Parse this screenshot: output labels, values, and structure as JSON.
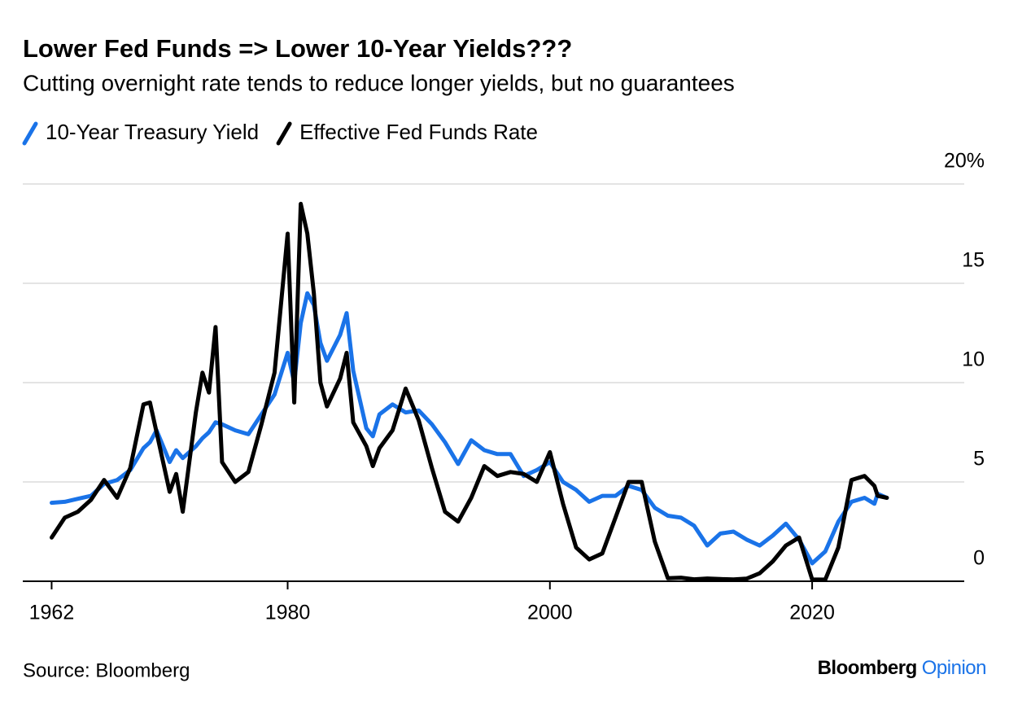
{
  "chart_data": {
    "type": "line",
    "title": "Lower Fed Funds => Lower 10-Year Yields???",
    "subtitle": "Cutting overnight rate tends to reduce longer yields, but no guarantees",
    "source": "Source: Bloomberg",
    "brand": [
      "Bloomberg",
      "Opinion"
    ],
    "x": [
      1962,
      1963,
      1964,
      1965,
      1966,
      1967,
      1968,
      1969,
      1969.5,
      1970,
      1971,
      1971.5,
      1972,
      1973,
      1973.5,
      1974,
      1974.5,
      1975,
      1976,
      1977,
      1978,
      1979,
      1980,
      1980.5,
      1981,
      1981.5,
      1982,
      1982.5,
      1983,
      1984,
      1984.5,
      1985,
      1986,
      1986.5,
      1987,
      1988,
      1989,
      1990,
      1991,
      1992,
      1993,
      1994,
      1995,
      1996,
      1997,
      1998,
      1999,
      2000,
      2001,
      2002,
      2003,
      2004,
      2005,
      2006,
      2007,
      2008,
      2009,
      2010,
      2011,
      2012,
      2013,
      2014,
      2015,
      2016,
      2017,
      2018,
      2019,
      2020,
      2021,
      2022,
      2023,
      2024,
      2024.75,
      2025,
      2025.7
    ],
    "series": [
      {
        "name": "10-Year Treasury Yield",
        "color": "#1a73e8",
        "values": [
          3.95,
          4.0,
          4.15,
          4.3,
          4.9,
          5.1,
          5.6,
          6.7,
          7.0,
          7.6,
          6.0,
          6.6,
          6.2,
          6.8,
          7.2,
          7.5,
          8.0,
          7.9,
          7.6,
          7.4,
          8.4,
          9.4,
          11.5,
          10.0,
          13.0,
          14.5,
          13.9,
          12.0,
          11.1,
          12.4,
          13.5,
          10.6,
          7.7,
          7.3,
          8.4,
          8.9,
          8.5,
          8.6,
          7.9,
          7.0,
          5.9,
          7.1,
          6.6,
          6.4,
          6.4,
          5.3,
          5.6,
          6.0,
          5.0,
          4.6,
          4.0,
          4.3,
          4.3,
          4.8,
          4.6,
          3.7,
          3.3,
          3.2,
          2.8,
          1.8,
          2.4,
          2.5,
          2.1,
          1.8,
          2.3,
          2.9,
          2.1,
          0.9,
          1.5,
          3.0,
          4.0,
          4.2,
          3.9,
          4.4,
          4.2
        ]
      },
      {
        "name": "Effective Fed Funds Rate",
        "color": "#000000",
        "values": [
          2.2,
          3.2,
          3.5,
          4.1,
          5.1,
          4.2,
          5.7,
          8.9,
          9.0,
          7.5,
          4.5,
          5.4,
          3.5,
          8.5,
          10.5,
          9.5,
          12.8,
          6.0,
          5.0,
          5.5,
          7.9,
          10.5,
          17.5,
          9.0,
          19.0,
          17.5,
          14.5,
          10.0,
          8.8,
          10.2,
          11.5,
          8.0,
          6.8,
          5.8,
          6.7,
          7.6,
          9.7,
          8.1,
          5.7,
          3.5,
          3.0,
          4.2,
          5.8,
          5.3,
          5.5,
          5.4,
          5.0,
          6.5,
          3.9,
          1.7,
          1.1,
          1.4,
          3.2,
          5.0,
          5.0,
          2.0,
          0.15,
          0.18,
          0.1,
          0.14,
          0.11,
          0.09,
          0.13,
          0.4,
          1.0,
          1.8,
          2.2,
          0.09,
          0.08,
          1.7,
          5.1,
          5.3,
          4.8,
          4.3,
          4.2
        ]
      }
    ],
    "xlim": [
      1959.8,
      2031.6
    ],
    "xticks": [
      1962,
      1980,
      2000,
      2020
    ],
    "ylim": [
      0,
      20
    ],
    "yticks": [
      0,
      5,
      10,
      15,
      {
        "value": 20,
        "label": "20%"
      }
    ],
    "grid": true
  }
}
